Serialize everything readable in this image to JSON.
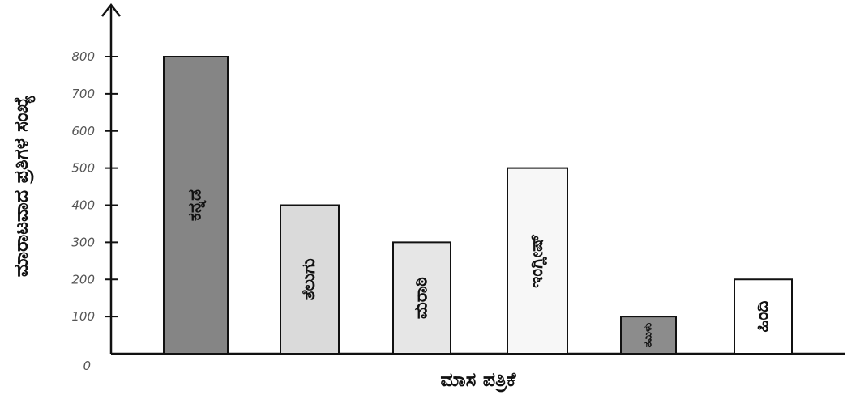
{
  "chart_data": {
    "type": "bar",
    "title": "",
    "xlabel": "ಮಾಸ ಪತ್ರಿಕೆ",
    "ylabel": "ಮಾರಾಟವಾದ ಪ್ರತಿಗಳ ಸಂಖ್ಯೆ",
    "ylim": [
      0,
      800
    ],
    "yticks": [
      "0",
      "100",
      "200",
      "300",
      "400",
      "500",
      "600",
      "700",
      "800"
    ],
    "categories": [
      "ಕನ್ನಡ",
      "ತೆಲುಗು",
      "ಮರಾಠಿ",
      "ಇಂಗ್ಲೀಷ್",
      "ತಮಿಳು",
      "ಹಿಂದಿ"
    ],
    "values": [
      800,
      400,
      300,
      500,
      100,
      200
    ],
    "colors": [
      "#858585",
      "#dadada",
      "#e6e6e6",
      "#f7f7f7",
      "#8c8c8c",
      "#ffffff"
    ],
    "grid": false
  }
}
